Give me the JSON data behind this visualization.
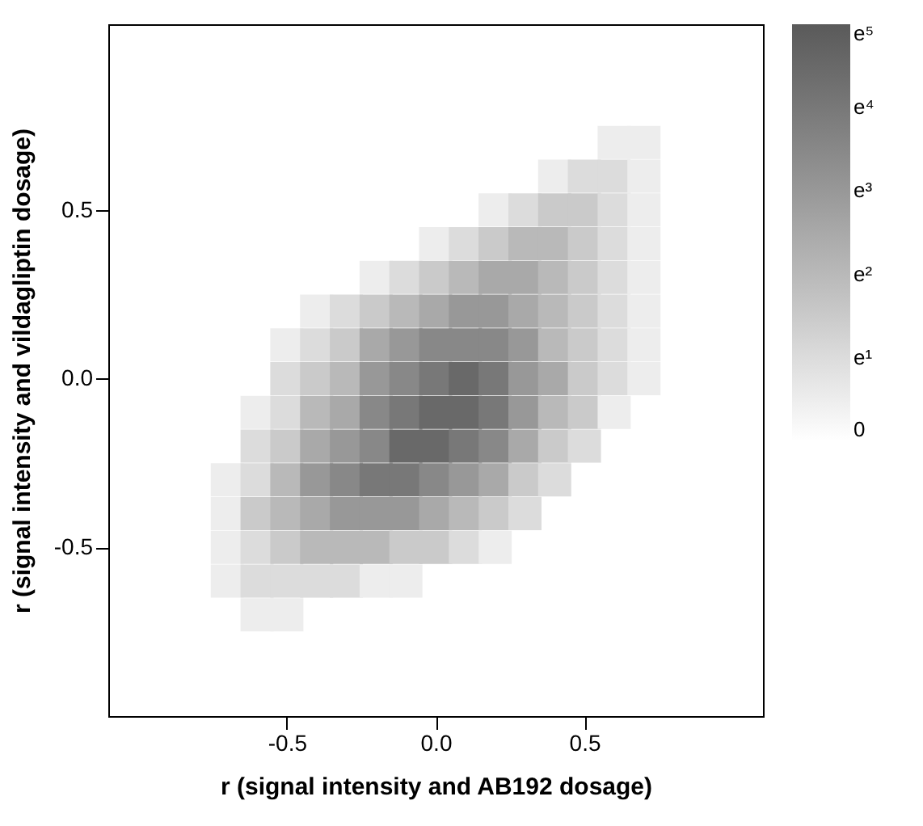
{
  "chart_data": {
    "type": "scatter",
    "xlabel": "r (signal intensity and AB192 dosage)",
    "ylabel": "r (signal intensity and vildagliptin dosage)",
    "marker": "square",
    "grid": false,
    "xlim": [
      -1.1,
      1.1
    ],
    "ylim": [
      -1,
      1.05
    ],
    "xticks": [
      -0.5,
      {
        "value": 0,
        "label": "0.0"
      },
      0.5
    ],
    "yticks": [
      -0.5,
      {
        "value": 0,
        "label": "0.0"
      },
      0.5
    ],
    "clim": [
      0,
      5
    ],
    "cticks": [
      {
        "value": 0,
        "label": "0"
      },
      {
        "value": 1,
        "label": "e¹"
      },
      {
        "value": 2,
        "label": "e²"
      },
      {
        "value": 3,
        "label": "e³"
      },
      {
        "value": 4,
        "label": "e⁴"
      },
      {
        "value": 5,
        "label": "e⁵"
      }
    ],
    "x": [
      0.6,
      0.7,
      0.4,
      0.5,
      0.6,
      0.7,
      0.2,
      0.3,
      0.4,
      0.5,
      0.6,
      0.7,
      0,
      0.1,
      0.2,
      0.3,
      0.4,
      0.5,
      0.6,
      0.7,
      -0.2,
      -0.1,
      0,
      0.1,
      0.2,
      0.3,
      0.4,
      0.5,
      0.6,
      0.7,
      -0.4,
      -0.3,
      -0.2,
      -0.1,
      0,
      0.1,
      0.2,
      0.3,
      0.4,
      0.5,
      0.6,
      0.7,
      -0.5,
      -0.4,
      -0.3,
      -0.2,
      -0.1,
      0,
      0.1,
      0.2,
      0.3,
      0.4,
      0.5,
      0.6,
      0.7,
      -0.5,
      -0.4,
      -0.3,
      -0.2,
      -0.1,
      0,
      0.1,
      0.2,
      0.3,
      0.4,
      0.5,
      0.6,
      0.7,
      -0.6,
      -0.5,
      -0.4,
      -0.3,
      -0.2,
      -0.1,
      0,
      0.1,
      0.2,
      0.3,
      0.4,
      0.5,
      0.6,
      -0.6,
      -0.5,
      -0.4,
      -0.3,
      -0.2,
      -0.1,
      0,
      0.1,
      0.2,
      0.3,
      0.4,
      0.5,
      -0.7,
      -0.6,
      -0.5,
      -0.4,
      -0.3,
      -0.2,
      -0.1,
      0,
      0.1,
      0.2,
      0.3,
      0.4,
      -0.7,
      -0.6,
      -0.5,
      -0.4,
      -0.3,
      -0.2,
      -0.1,
      0,
      0.1,
      0.2,
      0.3,
      -0.7,
      -0.6,
      -0.5,
      -0.4,
      -0.3,
      -0.2,
      -0.1,
      0,
      0.1,
      0.2,
      -0.7,
      -0.6,
      -0.5,
      -0.4,
      -0.3,
      -0.2,
      -0.1,
      -0.6,
      -0.5
    ],
    "values": [
      0.7,
      0.7,
      0.6,
      0.6,
      0.6,
      0.6,
      0.5,
      0.5,
      0.5,
      0.5,
      0.5,
      0.5,
      0.4,
      0.4,
      0.4,
      0.4,
      0.4,
      0.4,
      0.4,
      0.4,
      0.3,
      0.3,
      0.3,
      0.3,
      0.3,
      0.3,
      0.3,
      0.3,
      0.3,
      0.3,
      0.2,
      0.2,
      0.2,
      0.2,
      0.2,
      0.2,
      0.2,
      0.2,
      0.2,
      0.2,
      0.2,
      0.2,
      0.1,
      0.1,
      0.1,
      0.1,
      0.1,
      0.1,
      0.1,
      0.1,
      0.1,
      0.1,
      0.1,
      0.1,
      0.1,
      0,
      0,
      0,
      0,
      0,
      0,
      0,
      0,
      0,
      0,
      0,
      0,
      0,
      -0.1,
      -0.1,
      -0.1,
      -0.1,
      -0.1,
      -0.1,
      -0.1,
      -0.1,
      -0.1,
      -0.1,
      -0.1,
      -0.1,
      -0.1,
      -0.2,
      -0.2,
      -0.2,
      -0.2,
      -0.2,
      -0.2,
      -0.2,
      -0.2,
      -0.2,
      -0.2,
      -0.2,
      -0.2,
      -0.3,
      -0.3,
      -0.3,
      -0.3,
      -0.3,
      -0.3,
      -0.3,
      -0.3,
      -0.3,
      -0.3,
      -0.3,
      -0.3,
      -0.4,
      -0.4,
      -0.4,
      -0.4,
      -0.4,
      -0.4,
      -0.4,
      -0.4,
      -0.4,
      -0.4,
      -0.4,
      -0.5,
      -0.5,
      -0.5,
      -0.5,
      -0.5,
      -0.5,
      -0.5,
      -0.5,
      -0.5,
      -0.5,
      -0.6,
      -0.6,
      -0.6,
      -0.6,
      -0.6,
      -0.6,
      -0.6,
      -0.7,
      -0.7
    ],
    "cvalues": [
      0.5,
      0.5,
      0.5,
      1,
      1,
      0.5,
      0.5,
      1,
      1.5,
      1.5,
      1,
      0.5,
      0.5,
      1,
      1.5,
      2,
      2,
      1.5,
      1,
      0.5,
      0.5,
      1,
      1.5,
      2,
      2.5,
      2.5,
      2,
      1.5,
      1,
      0.5,
      0.5,
      1,
      1.5,
      2,
      2.5,
      3,
      3,
      2.5,
      2,
      1.5,
      1,
      0.5,
      0.5,
      1,
      1.5,
      2.5,
      3,
      3.5,
      3.5,
      3.5,
      3,
      2,
      1.5,
      1,
      0.5,
      1,
      1.5,
      2,
      3,
      3.5,
      4,
      4.5,
      4,
      3,
      2.5,
      1.5,
      1,
      0.5,
      0.5,
      1,
      2,
      2.5,
      3.5,
      4,
      4.5,
      4.5,
      4,
      3,
      2,
      1.5,
      0.5,
      1,
      1.5,
      2.5,
      3,
      3.5,
      4.5,
      4.5,
      4,
      3.5,
      2.5,
      1.5,
      1,
      0.5,
      1,
      2,
      3,
      3.5,
      4,
      4,
      3.5,
      3,
      2.5,
      1.5,
      1,
      0.5,
      1.5,
      2,
      2.5,
      3,
      3,
      3,
      2.5,
      2,
      1.5,
      1,
      0.5,
      1,
      1.5,
      2,
      2,
      2,
      1.5,
      1.5,
      1,
      0.5,
      0.5,
      1,
      1,
      1,
      1,
      0.5,
      0.5,
      0.5,
      0.5
    ]
  }
}
